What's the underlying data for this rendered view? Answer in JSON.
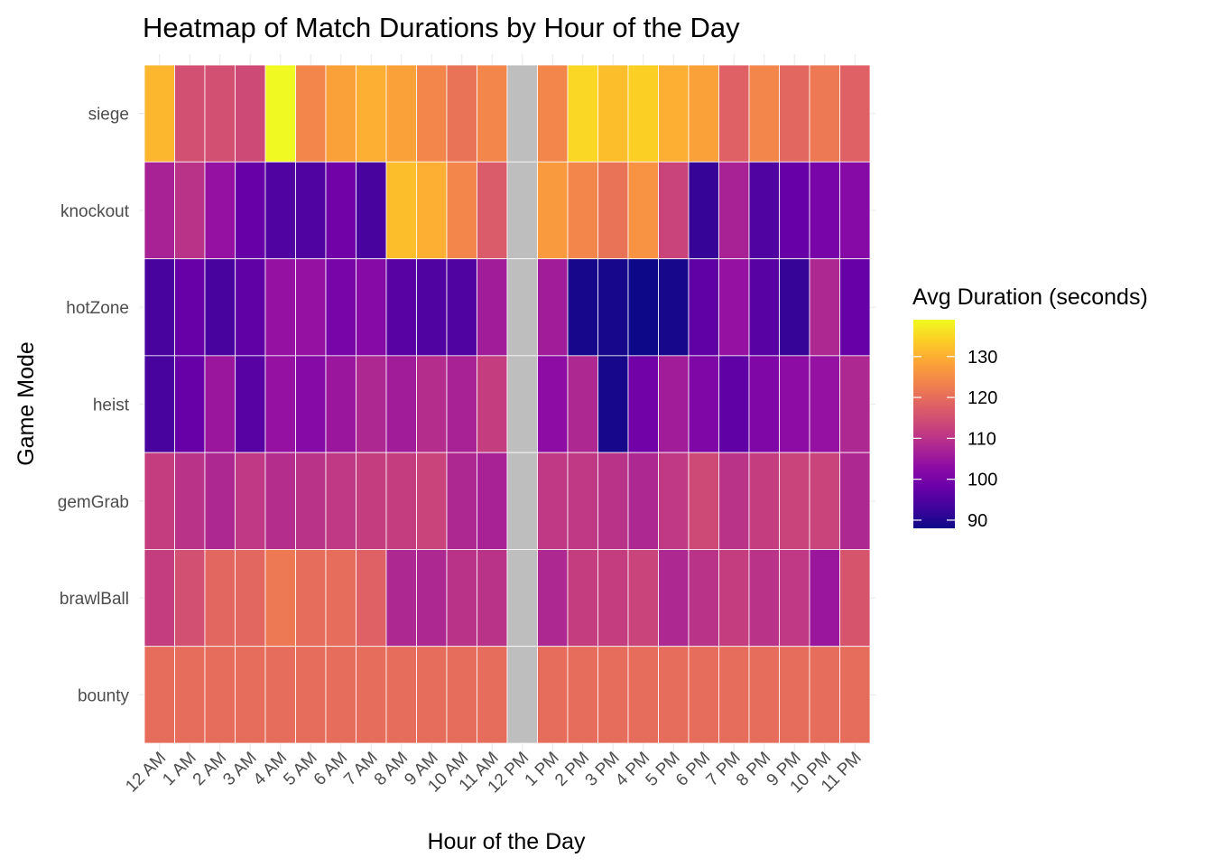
{
  "chart_data": {
    "type": "heatmap",
    "title": "Heatmap of Match Durations by Hour of the Day",
    "xlabel": "Hour of the Day",
    "ylabel": "Game Mode",
    "x_categories": [
      "12 AM",
      "1 AM",
      "2 AM",
      "3 AM",
      "4 AM",
      "5 AM",
      "6 AM",
      "7 AM",
      "8 AM",
      "9 AM",
      "10 AM",
      "11 AM",
      "12 PM",
      "1 PM",
      "2 PM",
      "3 PM",
      "4 PM",
      "5 PM",
      "6 PM",
      "7 PM",
      "8 PM",
      "9 PM",
      "10 PM",
      "11 PM"
    ],
    "y_categories": [
      "siege",
      "knockout",
      "hotZone",
      "heist",
      "gemGrab",
      "brawlBall",
      "bounty"
    ],
    "values": [
      [
        131,
        115,
        115,
        114,
        139,
        124,
        128,
        130,
        128,
        124,
        121,
        124,
        null,
        124,
        135,
        132,
        134,
        130,
        128,
        118,
        124,
        119,
        122,
        118
      ],
      [
        107,
        110,
        104,
        98,
        95,
        95,
        99,
        94,
        132,
        130,
        124,
        117,
        null,
        127,
        124,
        121,
        126,
        113,
        92,
        107,
        95,
        98,
        100,
        102
      ],
      [
        94,
        98,
        94,
        97,
        104,
        104,
        100,
        102,
        96,
        95,
        95,
        106,
        null,
        106,
        89,
        89,
        88,
        89,
        97,
        104,
        96,
        92,
        108,
        98
      ],
      [
        94,
        98,
        105,
        96,
        104,
        102,
        105,
        108,
        106,
        109,
        107,
        112,
        null,
        103,
        108,
        89,
        99,
        106,
        101,
        97,
        101,
        103,
        104,
        108
      ],
      [
        112,
        110,
        108,
        111,
        109,
        110,
        111,
        112,
        112,
        113,
        108,
        107,
        null,
        111,
        111,
        110,
        108,
        111,
        114,
        110,
        112,
        113,
        113,
        108
      ],
      [
        112,
        115,
        119,
        119,
        122,
        120,
        120,
        118,
        108,
        108,
        110,
        110,
        null,
        108,
        112,
        112,
        113,
        108,
        110,
        112,
        110,
        111,
        105,
        116
      ],
      [
        120,
        120,
        120,
        120,
        120,
        120,
        120,
        120,
        120,
        120,
        120,
        120,
        null,
        120,
        120,
        120,
        120,
        120,
        120,
        120,
        120,
        120,
        120,
        120
      ]
    ],
    "missing_color": "#bebebe",
    "colorscale": "plasma",
    "color_range": [
      88,
      139
    ],
    "legend": {
      "title": "Avg Duration (seconds)",
      "ticks": [
        90,
        100,
        110,
        120,
        130
      ],
      "position": "right"
    }
  }
}
